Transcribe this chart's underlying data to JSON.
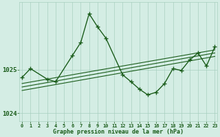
{
  "title": "Graphe pression niveau de la mer (hPa)",
  "xlabel_hours": [
    0,
    1,
    2,
    3,
    4,
    5,
    6,
    7,
    8,
    9,
    10,
    11,
    12,
    13,
    14,
    15,
    16,
    17,
    18,
    19,
    20,
    21,
    22,
    23
  ],
  "main_line": {
    "x": [
      0,
      1,
      3,
      4,
      6,
      7,
      8,
      9,
      10,
      12,
      13,
      14,
      15,
      16,
      17,
      18,
      19,
      20,
      21,
      22,
      23
    ],
    "y": [
      1024.82,
      1025.02,
      1024.78,
      1024.72,
      1025.32,
      1025.62,
      1026.28,
      1025.98,
      1025.72,
      1024.88,
      1024.72,
      1024.55,
      1024.42,
      1024.48,
      1024.68,
      1025.02,
      1024.98,
      1025.22,
      1025.38,
      1025.08,
      1025.52
    ]
  },
  "trend_line1": {
    "x": [
      0,
      23
    ],
    "y": [
      1024.68,
      1025.45
    ]
  },
  "trend_line2": {
    "x": [
      0,
      23
    ],
    "y": [
      1024.6,
      1025.38
    ]
  },
  "trend_line3": {
    "x": [
      0,
      23
    ],
    "y": [
      1024.52,
      1025.3
    ]
  },
  "line_color": "#1a5c1a",
  "bg_color": "#d4ede4",
  "grid_color": "#a8cfc0",
  "text_color": "#1a5c1a",
  "ylim": [
    1023.82,
    1026.55
  ],
  "yticks": [
    1024,
    1025
  ],
  "marker": "+",
  "marker_size": 4,
  "linewidth": 1.0
}
